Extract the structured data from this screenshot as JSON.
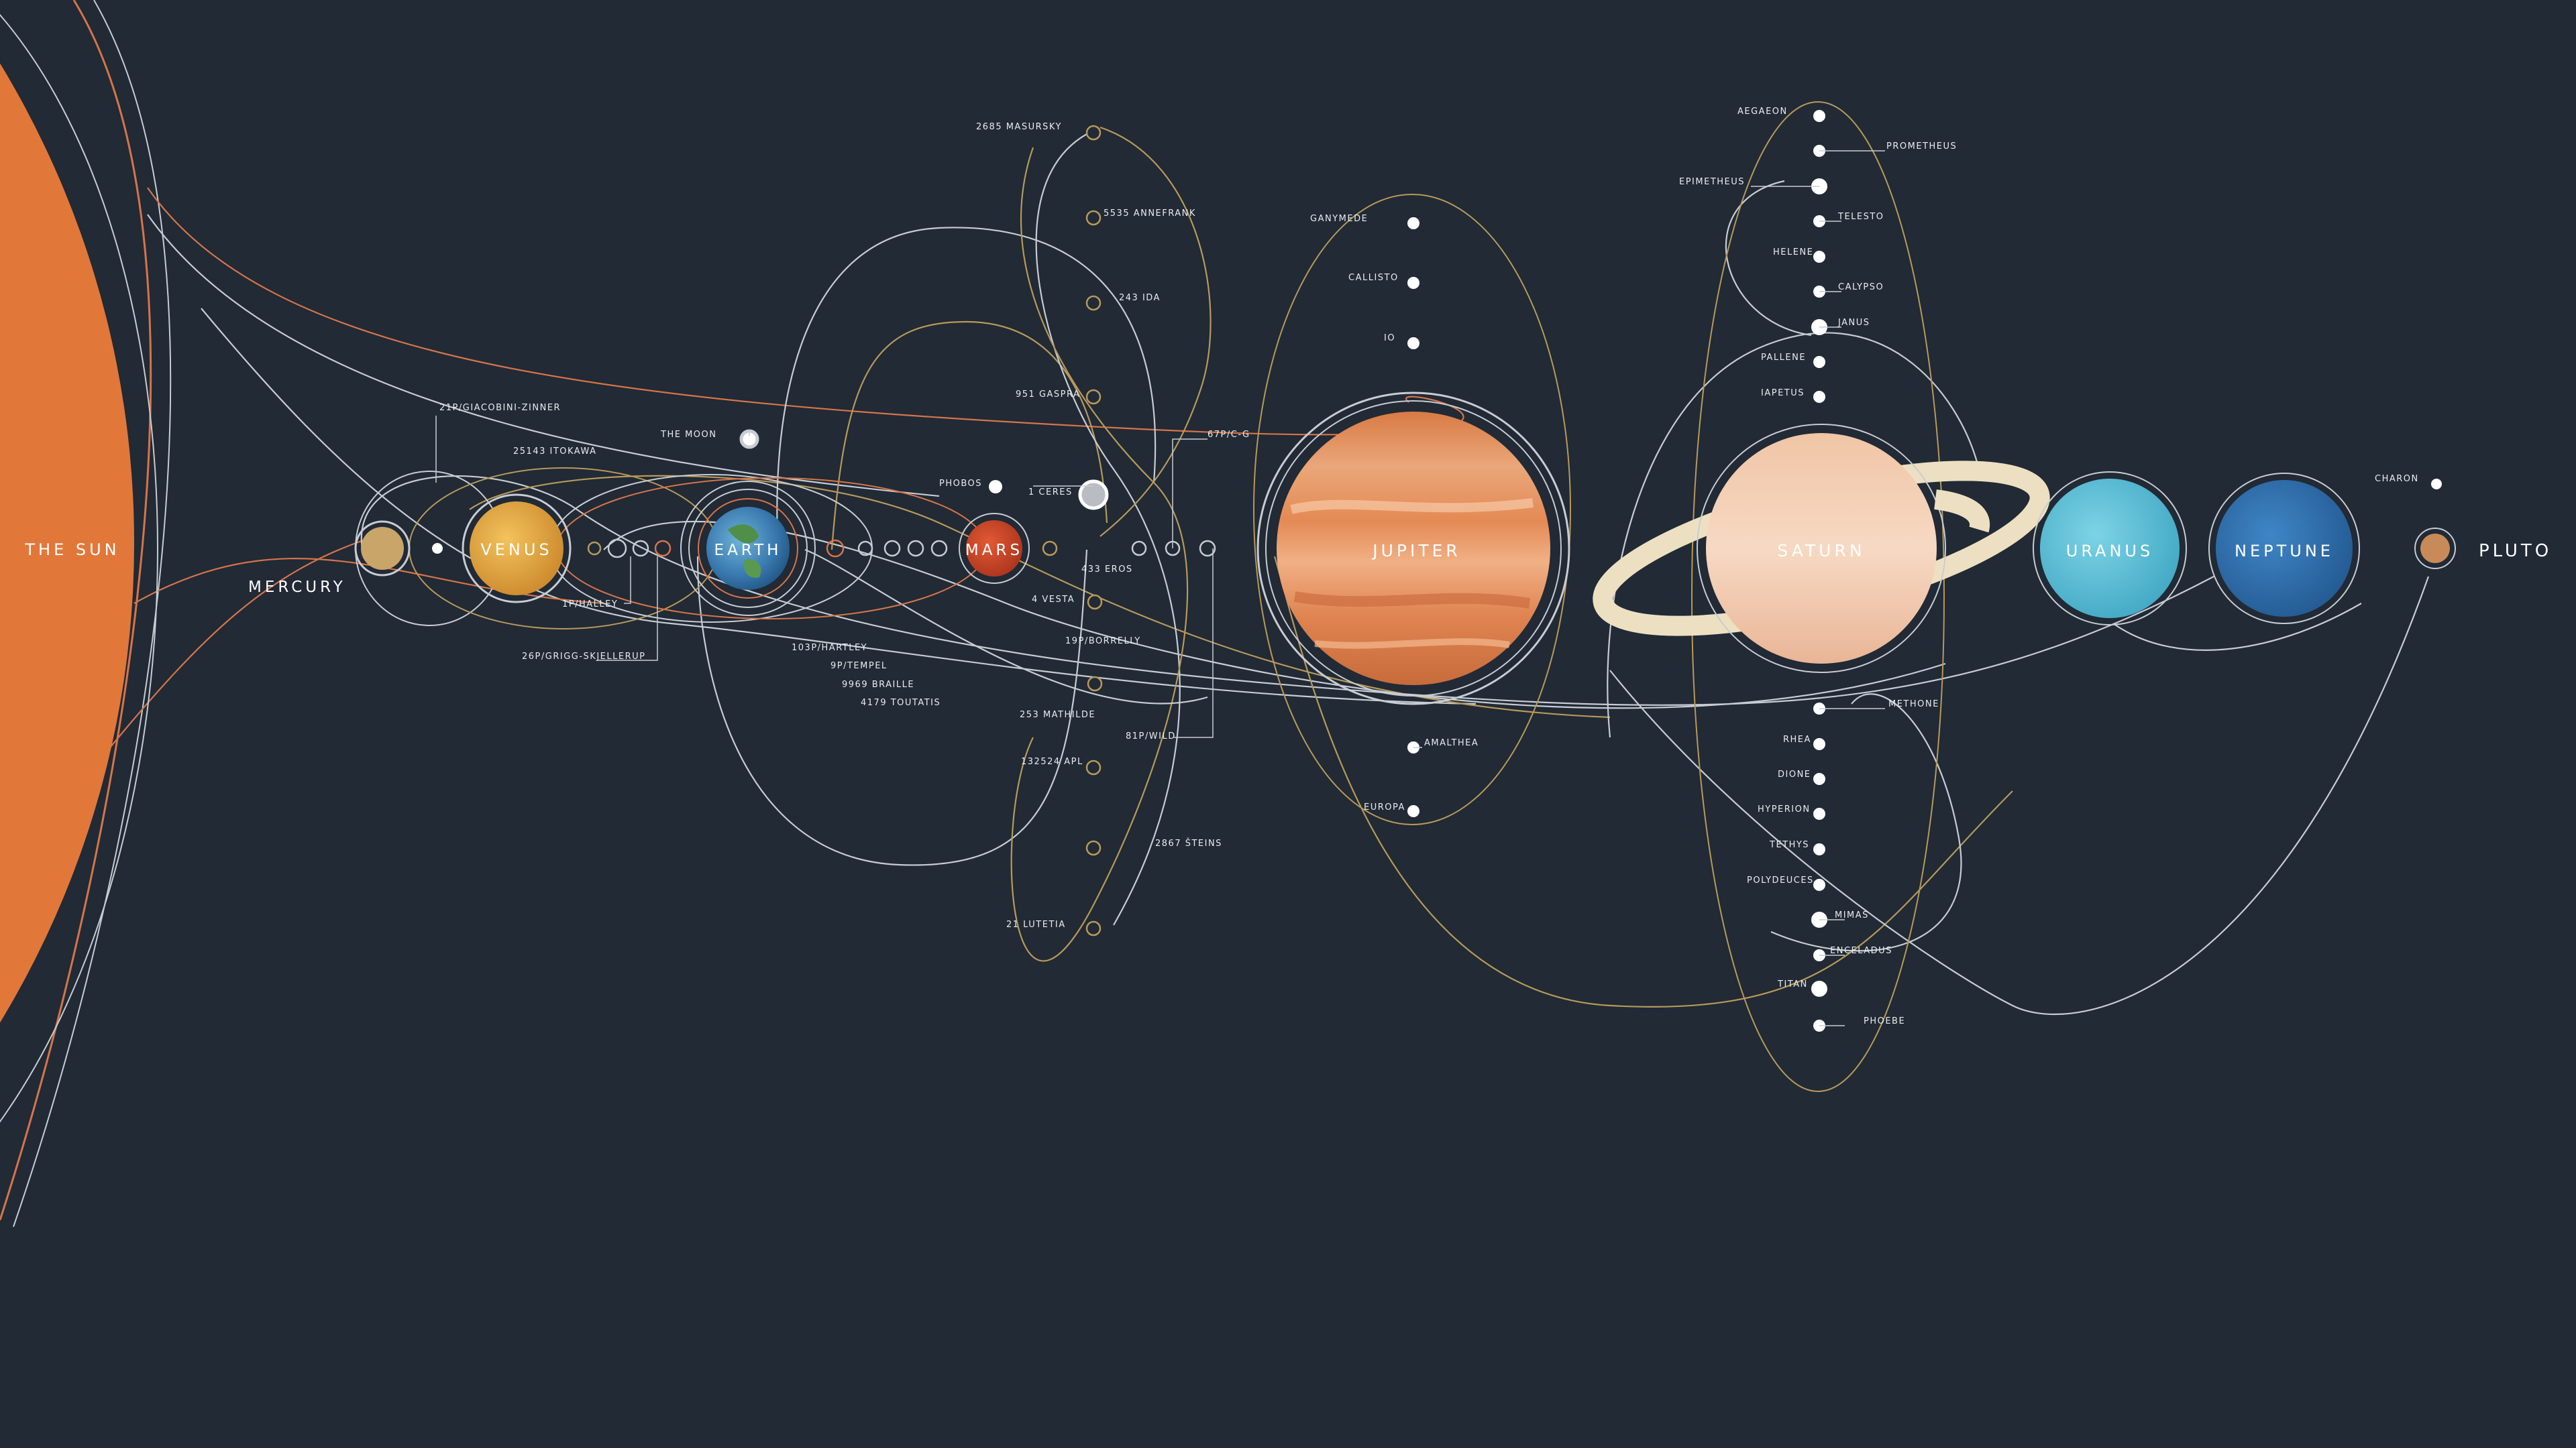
{
  "sun": {
    "label": "THE SUN",
    "color": "#e2773a"
  },
  "planets": [
    {
      "key": "mercury",
      "label": "MERCURY",
      "color": "#c9a56a"
    },
    {
      "key": "venus",
      "label": "VENUS",
      "color": "#e3a63b"
    },
    {
      "key": "earth",
      "label": "EARTH",
      "color": "#3f7fb5"
    },
    {
      "key": "mars",
      "label": "MARS",
      "color": "#cf4a2a"
    },
    {
      "key": "jupiter",
      "label": "JUPITER",
      "color": "#e08b53"
    },
    {
      "key": "saturn",
      "label": "SATURN",
      "color": "#f2c8ad"
    },
    {
      "key": "uranus",
      "label": "URANUS",
      "color": "#5fc2d8"
    },
    {
      "key": "neptune",
      "label": "NEPTUNE",
      "color": "#2d6fb0"
    },
    {
      "key": "pluto",
      "label": "PLUTO",
      "color": "#c98a5a"
    }
  ],
  "inner_labels": {
    "giacobini": "21P/GIACOBINI-ZINNER",
    "itokawa": "25143 ITOKAWA",
    "moon": "THE MOON",
    "halley": "1P/HALLEY",
    "grigg": "26P/GRIGG-SKJELLERUP",
    "hartley": "103P/HARTLEY",
    "tempel": "9P/TEMPEL",
    "braille": "9969 BRAILLE",
    "toutatis": "4179 TOUTATIS",
    "phobos": "PHOBOS",
    "ceres": "1 CERES",
    "vesta": "4 VESTA",
    "eros": "433 EROS",
    "borrelly": "19P/BORRELLY",
    "cg": "67P/C-G",
    "wild": "81P/WILD",
    "mathilde": "253 MATHILDE"
  },
  "asteroid_labels": {
    "masursky": "2685 MASURSKY",
    "annefrank": "5535 ANNEFRANK",
    "ida": "243 IDA",
    "gaspra": "951 GASPRA",
    "apl": "132524 APL",
    "steins": "2867 ŠTEINS",
    "lutetia": "21 LUTETIA"
  },
  "jupiter_moons": {
    "ganymede": "GANYMEDE",
    "callisto": "CALLISTO",
    "io": "IO",
    "amalthea": "AMALTHEA",
    "europa": "EUROPA"
  },
  "saturn_moons": {
    "aegaeon": "AEGAEON",
    "prometheus": "PROMETHEUS",
    "epimetheus": "EPIMETHEUS",
    "telesto": "TELESTO",
    "helene": "HELENE",
    "calypso": "CALYPSO",
    "janus": "JANUS",
    "pallene": "PALLENE",
    "iapetus": "IAPETUS",
    "methone": "METHONE",
    "rhea": "RHEA",
    "dione": "DIONE",
    "hyperion": "HYPERION",
    "tethys": "TETHYS",
    "polydeuces": "POLYDEUCES",
    "mimas": "MIMAS",
    "enceladus": "ENCELADUS",
    "titan": "TITAN",
    "phoebe": "PHOEBE"
  },
  "pluto_moons": {
    "charon": "CHARON"
  },
  "colors": {
    "background": "#212a35",
    "orbit_light": "#c8ccd2",
    "orbit_gold": "#b8995a",
    "orbit_orange": "#d6744a"
  }
}
